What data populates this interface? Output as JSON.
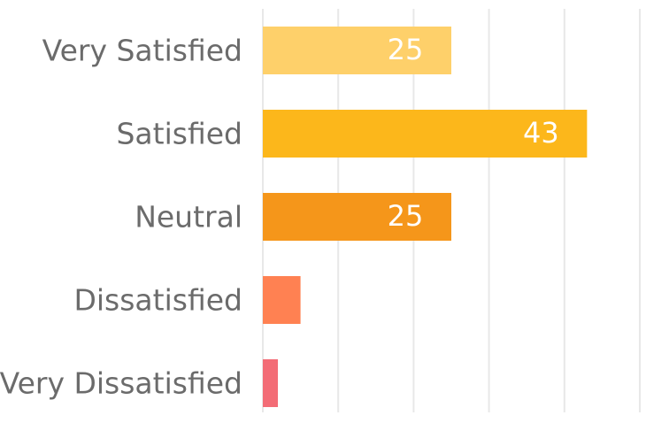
{
  "chart_data": {
    "type": "bar",
    "orientation": "horizontal",
    "categories": [
      "Very Satisfied",
      "Satisfied",
      "Neutral",
      "Dissatisfied",
      "Very Dissatisfied"
    ],
    "values": [
      25,
      43,
      25,
      5,
      2
    ],
    "colors": [
      "#fed06a",
      "#fcb71b",
      "#f5961a",
      "#ff8152",
      "#f36c76"
    ],
    "xlim": [
      0,
      50
    ],
    "xticks": [
      0,
      10,
      20,
      30,
      40,
      50
    ],
    "grid": true
  }
}
